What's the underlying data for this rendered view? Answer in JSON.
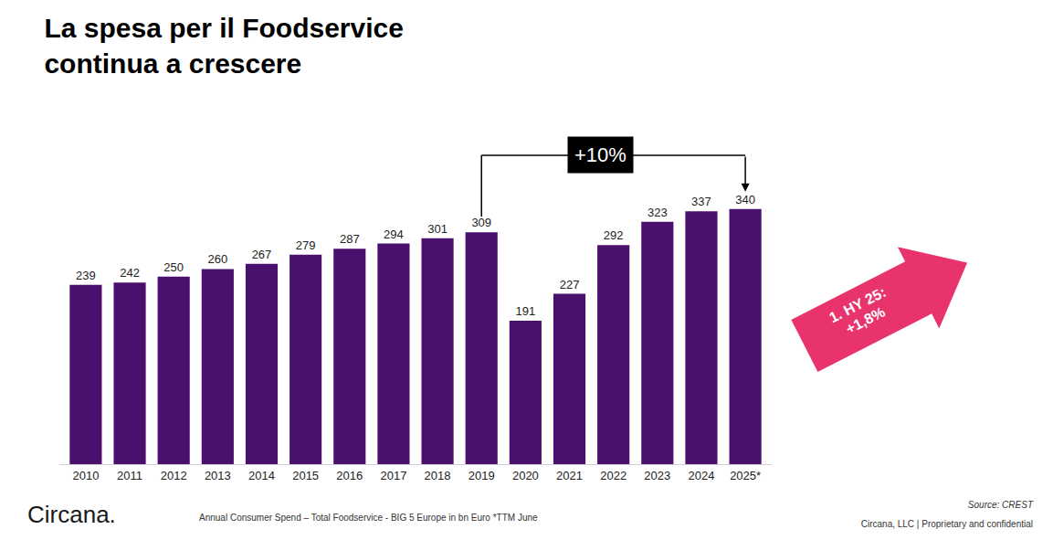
{
  "chart_data": {
    "type": "bar",
    "title": "La spesa per il Foodservice continua a crescere",
    "categories": [
      "2010",
      "2011",
      "2012",
      "2013",
      "2014",
      "2015",
      "2016",
      "2017",
      "2018",
      "2019",
      "2020",
      "2021",
      "2022",
      "2023",
      "2024",
      "2025*"
    ],
    "values": [
      239,
      242,
      250,
      260,
      267,
      279,
      287,
      294,
      301,
      309,
      191,
      227,
      292,
      323,
      337,
      340
    ],
    "color": "#4b0f6e",
    "ylim": [
      0,
      420
    ],
    "yticks": [],
    "grid": false,
    "data_labels": true,
    "tick_labels": "x",
    "annotations": [
      {
        "text": "+10%",
        "from": "2019",
        "to": "2025*"
      },
      {
        "text": [
          "1. HY 25:",
          "+1,8%"
        ],
        "color": "#e8336d"
      }
    ],
    "footnote": "Annual Consumer Spend – Total Foodservice - BIG 5 Europe in bn Euro *TTM June",
    "source": "Source: CREST",
    "brand": "Circana.",
    "confidential": "Circana, LLC | Proprietary and confidential"
  }
}
